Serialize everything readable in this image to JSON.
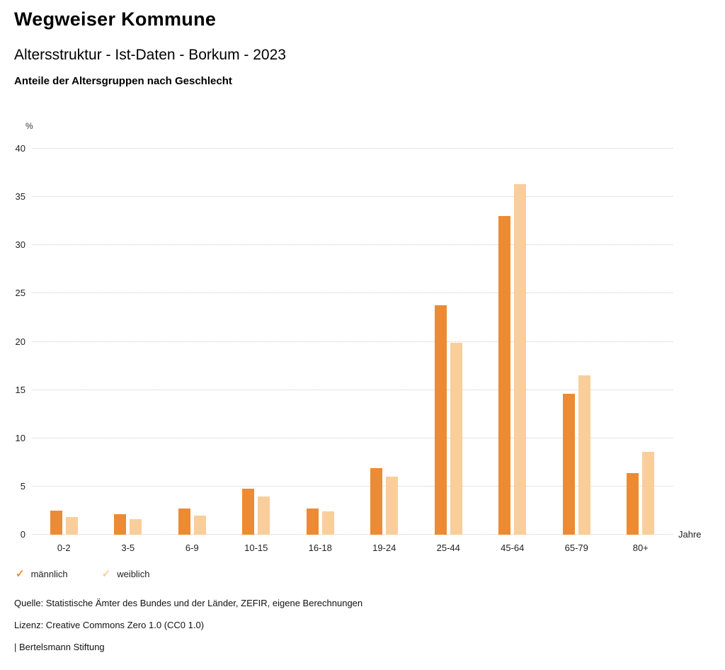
{
  "header": {
    "title": "Wegweiser Kommune",
    "subtitle": "Altersstruktur - Ist-Daten - Borkum - 2023",
    "description": "Anteile der Altersgruppen nach Geschlecht"
  },
  "chart_data": {
    "type": "bar",
    "title": "Anteile der Altersgruppen nach Geschlecht",
    "unit": "%",
    "x_unit": "Jahre",
    "categories": [
      "0-2",
      "3-5",
      "6-9",
      "10-15",
      "16-18",
      "19-24",
      "25-44",
      "45-64",
      "65-79",
      "80+"
    ],
    "series": [
      {
        "name": "männlich",
        "color": "#EC8B33",
        "values": [
          2.5,
          2.1,
          2.7,
          4.8,
          2.7,
          6.9,
          23.8,
          33.0,
          14.6,
          6.4
        ]
      },
      {
        "name": "weiblich",
        "color": "#F9CE9B",
        "values": [
          1.8,
          1.6,
          2.0,
          4.0,
          2.4,
          6.0,
          19.9,
          36.3,
          16.5,
          8.6
        ]
      }
    ],
    "ylim": [
      0,
      40
    ],
    "ytick_step": 5,
    "grid": true,
    "legend_position": "bottom"
  },
  "legend": {
    "items": [
      {
        "label": "männlich",
        "color": "#EC8B33",
        "icon": "check-icon"
      },
      {
        "label": "weiblich",
        "color": "#F9CE9B",
        "icon": "check-icon"
      }
    ]
  },
  "footer": {
    "source": "Quelle: Statistische Ämter des Bundes und der Länder, ZEFIR, eigene Berechnungen",
    "license": "Lizenz: Creative Commons Zero 1.0 (CC0 1.0)",
    "attribution": "| Bertelsmann Stiftung"
  }
}
